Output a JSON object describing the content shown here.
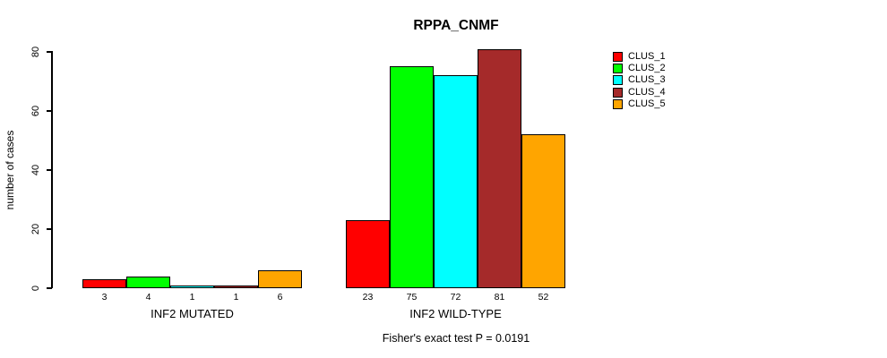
{
  "title": "RPPA_CNMF",
  "y_axis": {
    "label": "number of cases",
    "ticks": [
      0,
      20,
      40,
      60,
      80
    ]
  },
  "footnote": "Fisher's exact test P = 0.0191",
  "legend": {
    "entries": [
      {
        "label": "CLUS_1",
        "color": "#FF0000"
      },
      {
        "label": "CLUS_2",
        "color": "#00FF00"
      },
      {
        "label": "CLUS_3",
        "color": "#00FFFF"
      },
      {
        "label": "CLUS_4",
        "color": "#A52A2A"
      },
      {
        "label": "CLUS_5",
        "color": "#FFA500"
      }
    ]
  },
  "chart_data": {
    "type": "bar",
    "title": "RPPA_CNMF",
    "xlabel": "",
    "ylabel": "number of cases",
    "ylim": [
      0,
      80
    ],
    "grid": false,
    "legend_position": "right",
    "categories": [
      "INF2 MUTATED",
      "INF2 WILD-TYPE"
    ],
    "series": [
      {
        "name": "CLUS_1",
        "color": "#FF0000",
        "values": [
          3,
          23
        ]
      },
      {
        "name": "CLUS_2",
        "color": "#00FF00",
        "values": [
          4,
          75
        ]
      },
      {
        "name": "CLUS_3",
        "color": "#00FFFF",
        "values": [
          1,
          72
        ]
      },
      {
        "name": "CLUS_4",
        "color": "#A52A2A",
        "values": [
          1,
          81
        ]
      },
      {
        "name": "CLUS_5",
        "color": "#FFA500",
        "values": [
          6,
          52
        ]
      }
    ],
    "bar_value_labels": [
      [
        3,
        4,
        1,
        1,
        6
      ],
      [
        23,
        75,
        72,
        81,
        52
      ]
    ],
    "annotation": "Fisher's exact test P = 0.0191"
  }
}
